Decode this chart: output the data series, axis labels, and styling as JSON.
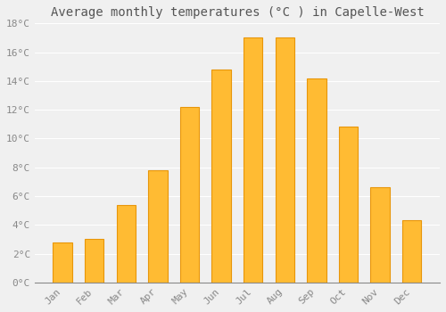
{
  "title": "Average monthly temperatures (°C ) in Capelle-West",
  "months": [
    "Jan",
    "Feb",
    "Mar",
    "Apr",
    "May",
    "Jun",
    "Jul",
    "Aug",
    "Sep",
    "Oct",
    "Nov",
    "Dec"
  ],
  "temperatures": [
    2.8,
    3.0,
    5.4,
    7.8,
    12.2,
    14.8,
    17.0,
    17.0,
    14.2,
    10.8,
    6.6,
    4.3
  ],
  "bar_color": "#FFBB33",
  "bar_edge_color": "#E8960A",
  "ylim": [
    0,
    18
  ],
  "yticks": [
    0,
    2,
    4,
    6,
    8,
    10,
    12,
    14,
    16,
    18
  ],
  "ytick_labels": [
    "0°C",
    "2°C",
    "4°C",
    "6°C",
    "8°C",
    "10°C",
    "12°C",
    "14°C",
    "16°C",
    "18°C"
  ],
  "background_color": "#F0F0F0",
  "grid_color": "#FFFFFF",
  "title_fontsize": 10,
  "tick_fontsize": 8,
  "font_family": "monospace",
  "tick_color": "#888888",
  "title_color": "#555555"
}
